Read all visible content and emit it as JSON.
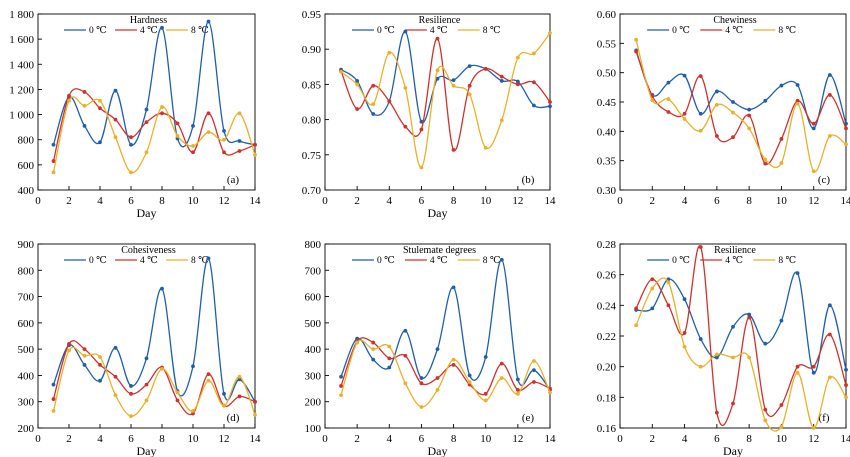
{
  "chart_data": [
    {
      "type": "line",
      "title": "Hardness",
      "letter": "(a)",
      "xlabel": "Day",
      "ylim": [
        400,
        1800
      ],
      "yticks": [
        400,
        600,
        800,
        1000,
        1200,
        1400,
        1600,
        1800
      ],
      "ytick_labels": [
        "400",
        "600",
        "800",
        "1 000",
        "1 200",
        "1 400",
        "1 600",
        "1 800"
      ],
      "xlim": [
        0,
        14
      ],
      "xticks": [
        0,
        2,
        4,
        6,
        8,
        10,
        12,
        14
      ],
      "x": [
        1,
        2,
        3,
        4,
        5,
        6,
        7,
        8,
        9,
        10,
        11,
        12,
        13,
        14
      ],
      "legend": "top",
      "series": [
        {
          "name": "0 ℃",
          "color": "#1f5fa8",
          "values": [
            760,
            1140,
            910,
            780,
            1190,
            760,
            1040,
            1690,
            810,
            910,
            1740,
            870,
            790,
            760
          ]
        },
        {
          "name": "4 ℃",
          "color": "#d0312d",
          "values": [
            630,
            1150,
            1180,
            1050,
            960,
            820,
            940,
            1010,
            930,
            700,
            1010,
            700,
            710,
            760
          ]
        },
        {
          "name": "8 ℃",
          "color": "#e8b12c",
          "values": [
            540,
            1110,
            1070,
            1110,
            820,
            540,
            700,
            1060,
            830,
            750,
            860,
            800,
            1010,
            680
          ]
        }
      ]
    },
    {
      "type": "line",
      "title": "Resilience",
      "letter": "(b)",
      "xlabel": "Day",
      "ylim": [
        0.7,
        0.95
      ],
      "yticks": [
        0.7,
        0.75,
        0.8,
        0.85,
        0.9,
        0.95
      ],
      "ytick_labels": [
        "0.70",
        "0.75",
        "0.80",
        "0.85",
        "0.90",
        "0.95"
      ],
      "xlim": [
        0,
        14
      ],
      "xticks": [
        0,
        2,
        4,
        6,
        8,
        10,
        12,
        14
      ],
      "x": [
        1,
        2,
        3,
        4,
        5,
        6,
        7,
        8,
        9,
        10,
        11,
        12,
        13,
        14
      ],
      "legend": "top",
      "series": [
        {
          "name": "0 ℃",
          "color": "#1f5fa8",
          "values": [
            0.871,
            0.855,
            0.808,
            0.826,
            0.925,
            0.797,
            0.858,
            0.856,
            0.876,
            0.872,
            0.855,
            0.854,
            0.82,
            0.819
          ]
        },
        {
          "name": "4 ℃",
          "color": "#d0312d",
          "values": [
            0.869,
            0.815,
            0.848,
            0.826,
            0.79,
            0.786,
            0.915,
            0.757,
            0.848,
            0.872,
            0.861,
            0.85,
            0.853,
            0.825
          ]
        },
        {
          "name": "8 ℃",
          "color": "#e8b12c",
          "values": [
            0.868,
            0.85,
            0.822,
            0.895,
            0.845,
            0.732,
            0.87,
            0.848,
            0.836,
            0.76,
            0.799,
            0.888,
            0.894,
            0.923
          ]
        }
      ]
    },
    {
      "type": "line",
      "title": "Chewiness",
      "letter": "(c)",
      "xlabel": "",
      "ylim": [
        0.3,
        0.6
      ],
      "yticks": [
        0.3,
        0.35,
        0.4,
        0.45,
        0.5,
        0.55,
        0.6
      ],
      "ytick_labels": [
        "0.30",
        "0.35",
        "0.40",
        "0.45",
        "0.50",
        "0.55",
        "0.60"
      ],
      "xlim": [
        0,
        14
      ],
      "xticks": [
        0,
        2,
        4,
        6,
        8,
        10,
        12,
        14
      ],
      "x": [
        1,
        2,
        3,
        4,
        5,
        6,
        7,
        8,
        9,
        10,
        11,
        12,
        13,
        14
      ],
      "legend": "top",
      "series": [
        {
          "name": "0 ℃",
          "color": "#1f5fa8",
          "values": [
            0.538,
            0.462,
            0.483,
            0.495,
            0.43,
            0.468,
            0.45,
            0.437,
            0.452,
            0.478,
            0.479,
            0.405,
            0.496,
            0.413
          ]
        },
        {
          "name": "4 ℃",
          "color": "#d0312d",
          "values": [
            0.536,
            0.46,
            0.433,
            0.43,
            0.494,
            0.392,
            0.39,
            0.427,
            0.345,
            0.387,
            0.452,
            0.413,
            0.462,
            0.405
          ]
        },
        {
          "name": "8 ℃",
          "color": "#e8b12c",
          "values": [
            0.556,
            0.453,
            0.455,
            0.421,
            0.401,
            0.445,
            0.432,
            0.405,
            0.352,
            0.346,
            0.447,
            0.332,
            0.392,
            0.378
          ]
        }
      ]
    },
    {
      "type": "line",
      "title": "Cohesiveness",
      "letter": "(d)",
      "xlabel": "Day",
      "ylim": [
        200,
        900
      ],
      "yticks": [
        200,
        300,
        400,
        500,
        600,
        700,
        800,
        900
      ],
      "ytick_labels": [
        "200",
        "300",
        "400",
        "500",
        "600",
        "700",
        "800",
        "900"
      ],
      "xlim": [
        0,
        14
      ],
      "xticks": [
        0,
        2,
        4,
        6,
        8,
        10,
        12,
        14
      ],
      "x": [
        1,
        2,
        3,
        4,
        5,
        6,
        7,
        8,
        9,
        10,
        11,
        12,
        13,
        14
      ],
      "legend": "top",
      "series": [
        {
          "name": "0 ℃",
          "color": "#1f5fa8",
          "values": [
            365,
            515,
            440,
            380,
            505,
            360,
            465,
            730,
            340,
            435,
            845,
            330,
            385,
            300
          ]
        },
        {
          "name": "4 ℃",
          "color": "#d0312d",
          "values": [
            310,
            520,
            500,
            440,
            395,
            330,
            365,
            430,
            305,
            255,
            405,
            285,
            320,
            300
          ]
        },
        {
          "name": "8 ℃",
          "color": "#e8b12c",
          "values": [
            265,
            495,
            475,
            470,
            325,
            245,
            305,
            425,
            335,
            265,
            380,
            285,
            395,
            250
          ]
        }
      ]
    },
    {
      "type": "line",
      "title": "Stulemate degrees",
      "letter": "(e)",
      "xlabel": "Day",
      "ylim": [
        100,
        800
      ],
      "yticks": [
        100,
        200,
        300,
        400,
        500,
        600,
        700,
        800
      ],
      "ytick_labels": [
        "100",
        "200",
        "300",
        "400",
        "500",
        "600",
        "700",
        "800"
      ],
      "xlim": [
        0,
        14
      ],
      "xticks": [
        0,
        2,
        4,
        6,
        8,
        10,
        12,
        14
      ],
      "x": [
        1,
        2,
        3,
        4,
        5,
        6,
        7,
        8,
        9,
        10,
        11,
        12,
        13,
        14
      ],
      "legend": "top",
      "series": [
        {
          "name": "0 ℃",
          "color": "#1f5fa8",
          "values": [
            295,
            440,
            360,
            330,
            470,
            290,
            400,
            635,
            300,
            370,
            740,
            285,
            320,
            245
          ]
        },
        {
          "name": "4 ℃",
          "color": "#d0312d",
          "values": [
            260,
            430,
            425,
            365,
            375,
            270,
            290,
            340,
            265,
            230,
            345,
            245,
            275,
            250
          ]
        },
        {
          "name": "8 ℃",
          "color": "#e8b12c",
          "values": [
            225,
            425,
            400,
            410,
            270,
            180,
            245,
            360,
            275,
            205,
            290,
            230,
            355,
            235
          ]
        }
      ]
    },
    {
      "type": "line",
      "title": "Resilience",
      "letter": "(f)",
      "xlabel": "Day",
      "ylim": [
        0.16,
        0.28
      ],
      "yticks": [
        0.16,
        0.18,
        0.2,
        0.22,
        0.24,
        0.26,
        0.28
      ],
      "ytick_labels": [
        "0.16",
        "0.18",
        "0.20",
        "0.22",
        "0.24",
        "0.26",
        "0.28"
      ],
      "xlim": [
        0,
        14
      ],
      "xticks": [
        0,
        2,
        4,
        6,
        8,
        10,
        12,
        14
      ],
      "x": [
        1,
        2,
        3,
        4,
        5,
        6,
        7,
        8,
        9,
        10,
        11,
        12,
        13,
        14
      ],
      "legend": "top",
      "series": [
        {
          "name": "0 ℃",
          "color": "#1f5fa8",
          "values": [
            0.237,
            0.238,
            0.257,
            0.244,
            0.218,
            0.206,
            0.226,
            0.234,
            0.215,
            0.23,
            0.261,
            0.196,
            0.24,
            0.198
          ]
        },
        {
          "name": "4 ℃",
          "color": "#d0312d",
          "values": [
            0.238,
            0.257,
            0.24,
            0.222,
            0.278,
            0.17,
            0.176,
            0.232,
            0.172,
            0.175,
            0.2,
            0.2,
            0.221,
            0.188
          ]
        },
        {
          "name": "8 ℃",
          "color": "#e8b12c",
          "values": [
            0.227,
            0.251,
            0.255,
            0.213,
            0.2,
            0.208,
            0.206,
            0.206,
            0.165,
            0.161,
            0.196,
            0.16,
            0.193,
            0.18
          ]
        }
      ]
    }
  ]
}
